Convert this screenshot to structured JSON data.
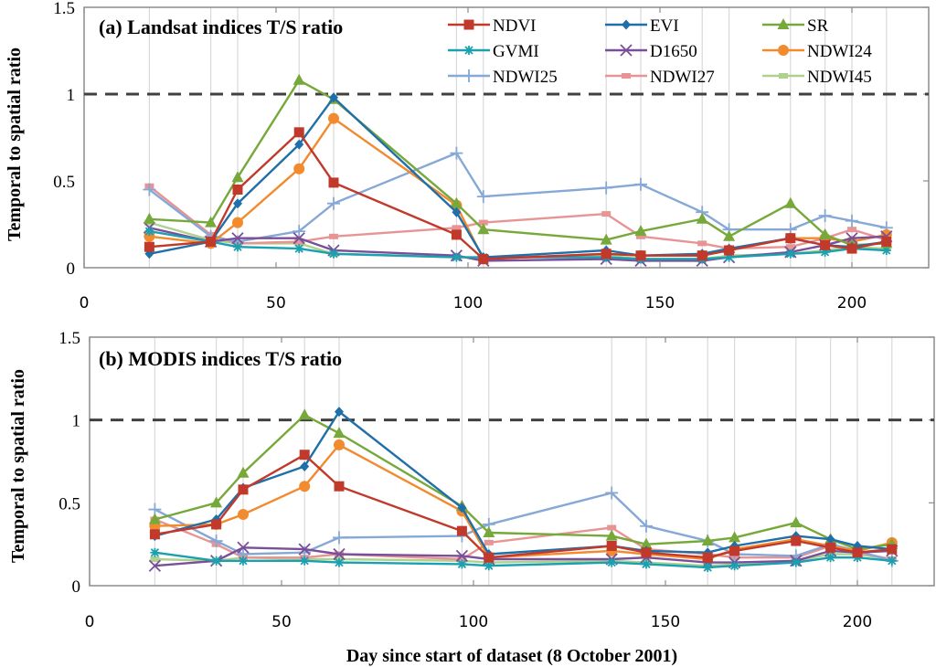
{
  "figure": {
    "xlabel": "Day since start of dataset (8 October 2001)",
    "ylabel": "Temporal  to spatial ratio",
    "reference_line_value": 1
  },
  "legend": [
    {
      "name": "NDVI",
      "color": "#c0392b",
      "marker": "square"
    },
    {
      "name": "EVI",
      "color": "#1f6fa8",
      "marker": "diamond"
    },
    {
      "name": "SR",
      "color": "#76a83a",
      "marker": "triangle"
    },
    {
      "name": "GVMI",
      "color": "#1aa0b0",
      "marker": "star"
    },
    {
      "name": "D1650",
      "color": "#7a4f9a",
      "marker": "x"
    },
    {
      "name": "NDWI24",
      "color": "#f28a2e",
      "marker": "circle"
    },
    {
      "name": "NDWI25",
      "color": "#86a8d6",
      "marker": "plus"
    },
    {
      "name": "NDWI27",
      "color": "#e89494",
      "marker": "dash"
    },
    {
      "name": "NDWI45",
      "color": "#aed28e",
      "marker": "dash"
    }
  ],
  "chart_data": [
    {
      "type": "line",
      "title": "(a) Landsat indices T/S ratio",
      "xlabel": "",
      "ylabel": "Temporal  to spatial ratio",
      "xlim": [
        0,
        220
      ],
      "ylim": [
        0,
        1.5
      ],
      "xticks": [
        0,
        50,
        100,
        150,
        200
      ],
      "yticks": [
        "0",
        "0.5",
        "1",
        "1.5"
      ],
      "grid": "vertical at observation days",
      "legend_position": "top-right",
      "x": [
        17,
        33,
        40,
        56,
        65,
        97,
        104,
        136,
        145,
        161,
        168,
        184,
        193,
        200,
        209
      ],
      "series": [
        {
          "name": "NDVI",
          "values": [
            0.12,
            0.15,
            0.45,
            0.78,
            0.49,
            0.19,
            0.05,
            0.08,
            0.07,
            0.07,
            0.1,
            0.17,
            0.13,
            0.11,
            0.15
          ]
        },
        {
          "name": "EVI",
          "values": [
            0.08,
            0.15,
            0.37,
            0.71,
            0.98,
            0.32,
            0.06,
            0.1,
            0.07,
            0.08,
            0.11,
            0.17,
            0.13,
            0.12,
            0.15
          ]
        },
        {
          "name": "SR",
          "values": [
            0.28,
            0.26,
            0.52,
            1.08,
            0.97,
            0.37,
            0.22,
            0.16,
            0.21,
            0.28,
            0.18,
            0.37,
            0.19,
            0.13,
            0.14
          ]
        },
        {
          "name": "GVMI",
          "values": [
            0.21,
            0.15,
            0.12,
            0.11,
            0.08,
            0.06,
            0.06,
            0.06,
            0.05,
            0.05,
            0.06,
            0.08,
            0.09,
            0.11,
            0.1
          ]
        },
        {
          "name": "D1650",
          "values": [
            0.23,
            0.15,
            0.17,
            0.17,
            0.1,
            0.07,
            0.04,
            0.05,
            0.04,
            0.04,
            0.06,
            0.09,
            0.13,
            0.17,
            0.18
          ]
        },
        {
          "name": "NDWI24",
          "values": [
            0.18,
            0.14,
            0.26,
            0.57,
            0.86,
            0.36,
            0.05,
            0.08,
            0.07,
            0.07,
            0.1,
            0.17,
            0.17,
            0.15,
            0.19
          ]
        },
        {
          "name": "NDWI25",
          "values": [
            0.45,
            0.18,
            0.15,
            0.21,
            0.37,
            0.66,
            0.41,
            0.46,
            0.48,
            0.32,
            0.22,
            0.22,
            0.3,
            0.27,
            0.23
          ]
        },
        {
          "name": "NDWI27",
          "values": [
            0.47,
            0.19,
            0.14,
            0.15,
            0.18,
            0.23,
            0.26,
            0.31,
            0.18,
            0.14,
            0.11,
            0.12,
            0.17,
            0.22,
            0.16
          ]
        },
        {
          "name": "NDWI45",
          "values": [
            0.26,
            0.16,
            0.14,
            0.14,
            0.08,
            0.06,
            0.06,
            0.07,
            0.05,
            0.05,
            0.07,
            0.08,
            0.1,
            0.12,
            0.11
          ]
        }
      ]
    },
    {
      "type": "line",
      "title": "(b) MODIS indices T/S ratio",
      "xlabel": "Day since start of dataset (8 October 2001)",
      "ylabel": "Temporal  to spatial ratio",
      "xlim": [
        0,
        220
      ],
      "ylim": [
        0,
        1.5
      ],
      "xticks": [
        0,
        50,
        100,
        150,
        200
      ],
      "yticks": [
        "0",
        "0.5",
        "1",
        "1.5"
      ],
      "grid": "vertical at observation days",
      "x": [
        17,
        33,
        40,
        56,
        65,
        97,
        104,
        136,
        145,
        161,
        168,
        184,
        193,
        200,
        209
      ],
      "series": [
        {
          "name": "NDVI",
          "values": [
            0.31,
            0.37,
            0.58,
            0.79,
            0.6,
            0.33,
            0.17,
            0.24,
            0.2,
            0.17,
            0.21,
            0.27,
            0.23,
            0.2,
            0.22
          ]
        },
        {
          "name": "EVI",
          "values": [
            0.3,
            0.4,
            0.59,
            0.72,
            1.05,
            0.47,
            0.19,
            0.24,
            0.21,
            0.2,
            0.24,
            0.3,
            0.28,
            0.24,
            0.22
          ]
        },
        {
          "name": "SR",
          "values": [
            0.4,
            0.5,
            0.68,
            1.03,
            0.92,
            0.48,
            0.32,
            0.3,
            0.25,
            0.27,
            0.29,
            0.38,
            0.28,
            0.22,
            0.25
          ]
        },
        {
          "name": "GVMI",
          "values": [
            0.2,
            0.15,
            0.15,
            0.15,
            0.14,
            0.13,
            0.12,
            0.14,
            0.13,
            0.11,
            0.12,
            0.14,
            0.17,
            0.17,
            0.15
          ]
        },
        {
          "name": "D1650",
          "values": [
            0.12,
            0.15,
            0.23,
            0.22,
            0.19,
            0.18,
            0.16,
            0.16,
            0.17,
            0.14,
            0.14,
            0.15,
            0.21,
            0.2,
            0.21
          ]
        },
        {
          "name": "NDWI24",
          "values": [
            0.36,
            0.37,
            0.43,
            0.6,
            0.85,
            0.45,
            0.17,
            0.21,
            0.19,
            0.16,
            0.22,
            0.28,
            0.24,
            0.21,
            0.26
          ]
        },
        {
          "name": "NDWI25",
          "values": [
            0.46,
            0.27,
            0.19,
            0.2,
            0.29,
            0.3,
            0.37,
            0.56,
            0.36,
            0.27,
            0.19,
            0.18,
            0.25,
            0.21,
            0.15
          ]
        },
        {
          "name": "NDWI27",
          "values": [
            0.4,
            0.25,
            0.17,
            0.17,
            0.19,
            0.16,
            0.26,
            0.35,
            0.22,
            0.19,
            0.17,
            0.17,
            0.24,
            0.2,
            0.16
          ]
        },
        {
          "name": "NDWI45",
          "values": [
            0.16,
            0.15,
            0.17,
            0.16,
            0.16,
            0.15,
            0.14,
            0.15,
            0.14,
            0.12,
            0.13,
            0.15,
            0.19,
            0.19,
            0.16
          ]
        }
      ]
    }
  ]
}
